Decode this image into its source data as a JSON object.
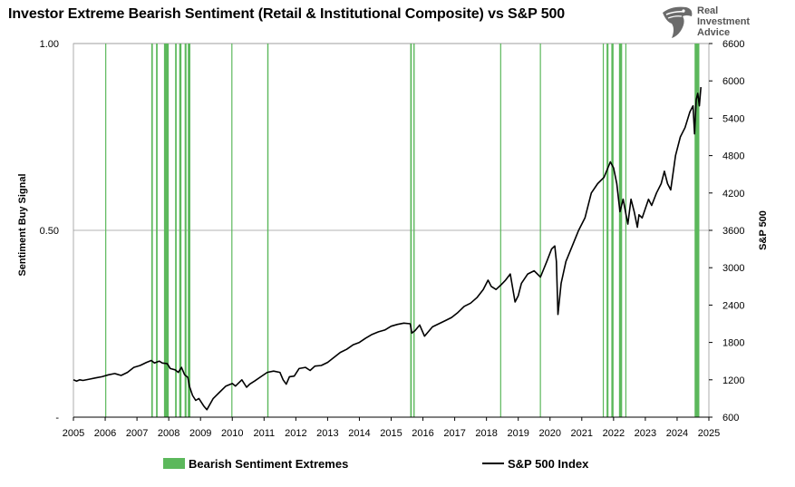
{
  "title": "Investor Extreme Bearish Sentiment (Retail & Institutional Composite) vs S&P 500",
  "logo": {
    "line1": "Real",
    "line2": "Investment",
    "line3": "Advice",
    "icon": "eagle-head-icon"
  },
  "legend": {
    "bars_label": "Bearish Sentiment Extremes",
    "line_label": "S&P 500 Index"
  },
  "colors": {
    "bars": "#5cb85c",
    "line": "#000000",
    "grid": "#9a9a9a"
  },
  "chart_data": {
    "type": "bar+line",
    "title": "Investor Extreme Bearish Sentiment (Retail & Institutional Composite) vs S&P 500",
    "ylabel_left": "Sentiment Buy Signal",
    "ylabel_right": "S&P 500",
    "left_ticks": [
      "-",
      "0.50",
      "1.00"
    ],
    "left_ylim": [
      0,
      1
    ],
    "right_ticks": [
      600,
      1200,
      1800,
      2400,
      3000,
      3600,
      4200,
      4800,
      5400,
      6000,
      6600
    ],
    "right_ylim": [
      600,
      6600
    ],
    "x_ticks": [
      "2005",
      "2006",
      "2007",
      "2008",
      "2009",
      "2010",
      "2011",
      "2012",
      "2013",
      "2014",
      "2015",
      "2016",
      "2017",
      "2018",
      "2019",
      "2020",
      "2021",
      "2022",
      "2023",
      "2024",
      "2025"
    ],
    "xlim": [
      2005.0,
      2025.0
    ],
    "grid": true,
    "legend_position": "bottom",
    "signals": [
      {
        "start": 2006.0,
        "end": 2006.03
      },
      {
        "start": 2007.45,
        "end": 2007.5
      },
      {
        "start": 2007.6,
        "end": 2007.65
      },
      {
        "start": 2007.85,
        "end": 2008.0
      },
      {
        "start": 2008.2,
        "end": 2008.25
      },
      {
        "start": 2008.33,
        "end": 2008.4
      },
      {
        "start": 2008.5,
        "end": 2008.56
      },
      {
        "start": 2008.6,
        "end": 2008.68
      },
      {
        "start": 2009.97,
        "end": 2010.0
      },
      {
        "start": 2011.1,
        "end": 2011.14
      },
      {
        "start": 2015.6,
        "end": 2015.65
      },
      {
        "start": 2015.7,
        "end": 2015.74
      },
      {
        "start": 2018.43,
        "end": 2018.46
      },
      {
        "start": 2019.68,
        "end": 2019.71
      },
      {
        "start": 2021.66,
        "end": 2021.69
      },
      {
        "start": 2021.78,
        "end": 2021.84
      },
      {
        "start": 2021.93,
        "end": 2022.0
      },
      {
        "start": 2022.17,
        "end": 2022.27
      },
      {
        "start": 2022.37,
        "end": 2022.4
      },
      {
        "start": 2024.55,
        "end": 2024.7
      }
    ],
    "series": [
      {
        "name": "S&P 500 Index",
        "x": [
          2005.0,
          2005.1,
          2005.2,
          2005.3,
          2005.5,
          2005.7,
          2005.9,
          2006.1,
          2006.3,
          2006.5,
          2006.7,
          2006.9,
          2007.1,
          2007.3,
          2007.45,
          2007.55,
          2007.7,
          2007.8,
          2007.95,
          2008.05,
          2008.2,
          2008.3,
          2008.4,
          2008.5,
          2008.6,
          2008.65,
          2008.75,
          2008.85,
          2008.95,
          2009.1,
          2009.2,
          2009.4,
          2009.6,
          2009.8,
          2010.0,
          2010.1,
          2010.3,
          2010.45,
          2010.55,
          2010.7,
          2010.9,
          2011.1,
          2011.3,
          2011.5,
          2011.6,
          2011.7,
          2011.8,
          2011.95,
          2012.1,
          2012.3,
          2012.45,
          2012.6,
          2012.8,
          2013.0,
          2013.2,
          2013.4,
          2013.6,
          2013.8,
          2014.0,
          2014.2,
          2014.4,
          2014.6,
          2014.8,
          2015.0,
          2015.2,
          2015.4,
          2015.6,
          2015.65,
          2015.75,
          2015.9,
          2016.05,
          2016.15,
          2016.3,
          2016.5,
          2016.7,
          2016.9,
          2017.1,
          2017.3,
          2017.5,
          2017.7,
          2017.9,
          2018.05,
          2018.15,
          2018.3,
          2018.45,
          2018.6,
          2018.75,
          2018.9,
          2019.0,
          2019.1,
          2019.3,
          2019.5,
          2019.7,
          2019.9,
          2020.05,
          2020.15,
          2020.2,
          2020.25,
          2020.35,
          2020.5,
          2020.7,
          2020.9,
          2021.1,
          2021.3,
          2021.5,
          2021.7,
          2021.9,
          2022.0,
          2022.1,
          2022.2,
          2022.3,
          2022.45,
          2022.55,
          2022.65,
          2022.75,
          2022.8,
          2022.9,
          2023.0,
          2023.1,
          2023.2,
          2023.35,
          2023.5,
          2023.6,
          2023.7,
          2023.8,
          2023.95,
          2024.1,
          2024.25,
          2024.4,
          2024.5,
          2024.55,
          2024.6,
          2024.65,
          2024.7,
          2024.75
        ],
        "y": [
          1200,
          1180,
          1200,
          1190,
          1210,
          1230,
          1250,
          1280,
          1300,
          1270,
          1320,
          1400,
          1430,
          1480,
          1510,
          1470,
          1500,
          1470,
          1460,
          1380,
          1360,
          1320,
          1400,
          1280,
          1240,
          1100,
          950,
          870,
          900,
          780,
          720,
          900,
          1000,
          1100,
          1140,
          1100,
          1200,
          1080,
          1130,
          1180,
          1250,
          1320,
          1340,
          1320,
          1200,
          1130,
          1250,
          1260,
          1380,
          1400,
          1350,
          1420,
          1430,
          1480,
          1560,
          1640,
          1690,
          1760,
          1800,
          1870,
          1930,
          1970,
          2000,
          2060,
          2090,
          2110,
          2100,
          1950,
          1990,
          2080,
          1900,
          1960,
          2050,
          2100,
          2150,
          2200,
          2280,
          2380,
          2430,
          2520,
          2650,
          2800,
          2700,
          2650,
          2720,
          2800,
          2900,
          2450,
          2550,
          2750,
          2900,
          2950,
          2850,
          3100,
          3300,
          3350,
          3100,
          2250,
          2750,
          3100,
          3350,
          3600,
          3800,
          4200,
          4350,
          4450,
          4700,
          4600,
          4350,
          3900,
          4100,
          3700,
          4100,
          3900,
          3650,
          3850,
          3800,
          3950,
          4100,
          4000,
          4200,
          4350,
          4550,
          4350,
          4250,
          4800,
          5100,
          5250,
          5500,
          5600,
          5150,
          5700,
          5800,
          5600,
          5900
        ]
      }
    ]
  }
}
